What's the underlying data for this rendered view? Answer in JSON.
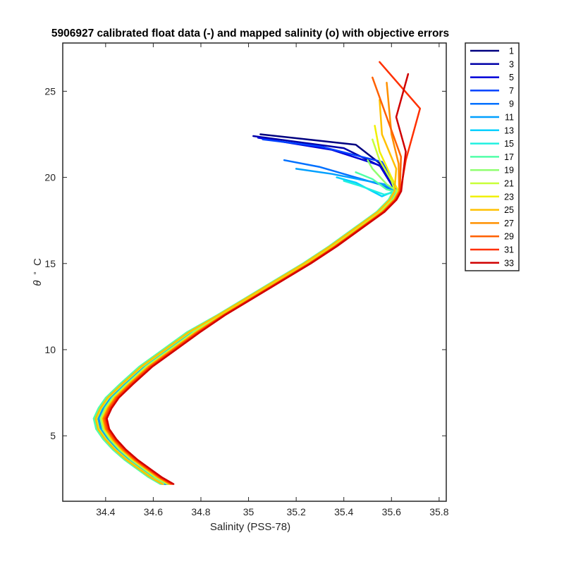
{
  "chart_data": {
    "type": "line",
    "title": "5906927 calibrated float data (-) and mapped salinity (o) with objective errors",
    "xlabel": "Salinity (PSS-78)",
    "ylabel_symbol": "θ",
    "ylabel_sup": "∘",
    "ylabel_unit": "C",
    "xlim": [
      34.22,
      35.83
    ],
    "ylim": [
      1.2,
      27.8
    ],
    "xticks": [
      34.4,
      34.6,
      34.8,
      35,
      35.2,
      35.4,
      35.6,
      35.8
    ],
    "xtick_labels": [
      "34.4",
      "34.6",
      "34.8",
      "35",
      "35.2",
      "35.4",
      "35.6",
      "35.8"
    ],
    "yticks": [
      5,
      10,
      15,
      20,
      25
    ],
    "ytick_labels": [
      "5",
      "10",
      "15",
      "20",
      "25"
    ],
    "grid": false,
    "legend_placement": "outside-right-top",
    "legend": [
      "1",
      "3",
      "5",
      "7",
      "9",
      "11",
      "13",
      "15",
      "17",
      "19",
      "21",
      "23",
      "25",
      "27",
      "29",
      "31",
      "33"
    ],
    "base_profile": [
      [
        34.65,
        2.2
      ],
      [
        34.6,
        2.6
      ],
      [
        34.55,
        3.1
      ],
      [
        34.5,
        3.6
      ],
      [
        34.45,
        4.2
      ],
      [
        34.41,
        4.8
      ],
      [
        34.38,
        5.4
      ],
      [
        34.37,
        6.0
      ],
      [
        34.39,
        6.6
      ],
      [
        34.42,
        7.2
      ],
      [
        34.48,
        8.0
      ],
      [
        34.56,
        9.0
      ],
      [
        34.66,
        10.0
      ],
      [
        34.76,
        11.0
      ],
      [
        34.88,
        12.0
      ],
      [
        35.0,
        13.0
      ],
      [
        35.12,
        14.0
      ],
      [
        35.24,
        15.0
      ],
      [
        35.35,
        16.0
      ],
      [
        35.45,
        17.0
      ],
      [
        35.55,
        18.0
      ],
      [
        35.6,
        18.7
      ],
      [
        35.62,
        19.2
      ]
    ],
    "series": [
      {
        "color": "#000080",
        "tail": [
          [
            35.58,
            20.5
          ],
          [
            35.45,
            21.9
          ],
          [
            35.05,
            22.5
          ]
        ],
        "xoff": 0.0
      },
      {
        "color": "#0000a8",
        "tail": [
          [
            35.56,
            20.6
          ],
          [
            35.4,
            21.7
          ],
          [
            35.02,
            22.4
          ]
        ],
        "xoff": 0.005
      },
      {
        "color": "#0000d8",
        "tail": [
          [
            35.55,
            20.7
          ],
          [
            35.35,
            21.6
          ],
          [
            35.04,
            22.3
          ]
        ],
        "xoff": -0.005
      },
      {
        "color": "#0040ff",
        "tail": [
          [
            35.56,
            20.9
          ],
          [
            35.3,
            21.8
          ],
          [
            35.06,
            22.2
          ]
        ],
        "xoff": 0.01
      },
      {
        "color": "#0070ff",
        "tail": [
          [
            35.55,
            19.6
          ],
          [
            35.3,
            20.6
          ],
          [
            35.15,
            21.0
          ]
        ],
        "xoff": -0.01
      },
      {
        "color": "#00a0ff",
        "tail": [
          [
            35.57,
            19.6
          ],
          [
            35.35,
            20.2
          ],
          [
            35.2,
            20.5
          ]
        ],
        "xoff": 0.0
      },
      {
        "color": "#00d0ff",
        "tail": [
          [
            35.56,
            18.9
          ],
          [
            35.45,
            19.7
          ],
          [
            35.37,
            20.0
          ]
        ],
        "xoff": -0.015
      },
      {
        "color": "#20f0e0",
        "tail": [
          [
            35.57,
            19.0
          ],
          [
            35.47,
            19.5
          ],
          [
            35.4,
            19.8
          ]
        ],
        "xoff": 0.012
      },
      {
        "color": "#50ffa8",
        "tail": [
          [
            35.58,
            19.3
          ],
          [
            35.52,
            19.9
          ],
          [
            35.45,
            20.3
          ]
        ],
        "xoff": -0.02
      },
      {
        "color": "#90ff70",
        "tail": [
          [
            35.58,
            19.6
          ],
          [
            35.52,
            20.5
          ],
          [
            35.5,
            21.0
          ]
        ],
        "xoff": 0.008
      },
      {
        "color": "#c8ff38",
        "tail": [
          [
            35.6,
            19.8
          ],
          [
            35.55,
            21.0
          ],
          [
            35.52,
            22.2
          ]
        ],
        "xoff": -0.008
      },
      {
        "color": "#f0f000",
        "tail": [
          [
            35.6,
            20.0
          ],
          [
            35.55,
            21.5
          ],
          [
            35.53,
            23.0
          ]
        ],
        "xoff": 0.015
      },
      {
        "color": "#ffc000",
        "tail": [
          [
            35.62,
            20.5
          ],
          [
            35.56,
            22.5
          ],
          [
            35.55,
            24.5
          ]
        ],
        "xoff": -0.012
      },
      {
        "color": "#ff9000",
        "tail": [
          [
            35.63,
            20.8
          ],
          [
            35.6,
            22.5
          ],
          [
            35.58,
            25.5
          ]
        ],
        "xoff": 0.02
      },
      {
        "color": "#ff6000",
        "tail": [
          [
            35.64,
            21.2
          ],
          [
            35.58,
            23.5
          ],
          [
            35.52,
            25.8
          ]
        ],
        "xoff": 0.025
      },
      {
        "color": "#ff3000",
        "tail": [
          [
            35.66,
            21.0
          ],
          [
            35.72,
            24.0
          ],
          [
            35.55,
            26.7
          ]
        ],
        "xoff": 0.03
      },
      {
        "color": "#d00000",
        "tail": [
          [
            35.66,
            21.5
          ],
          [
            35.62,
            23.5
          ],
          [
            35.67,
            26.0
          ]
        ],
        "xoff": 0.035
      }
    ]
  }
}
